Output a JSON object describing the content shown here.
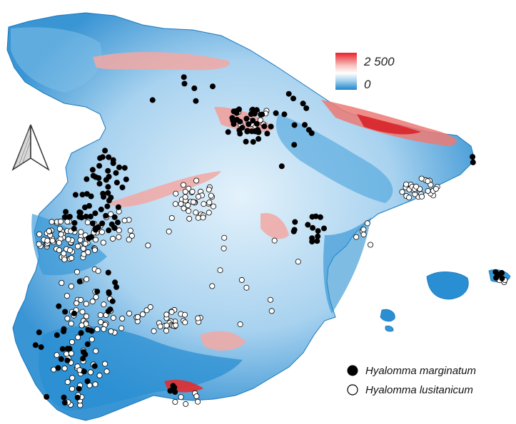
{
  "elevation_legend": {
    "max_label": "2 500",
    "min_label": "0",
    "colors": [
      "#e8222b",
      "#f7c4c1",
      "#ffffff",
      "#a9d3ee",
      "#1f86cc"
    ]
  },
  "north_arrow": {
    "icon": "north-arrow-icon"
  },
  "species_legend": {
    "items": [
      {
        "label": "Hyalomma marginatum",
        "marker": "filled",
        "color": "#000000"
      },
      {
        "label": "Hyalomma lusitanicum",
        "marker": "open",
        "color": "#ffffff"
      }
    ]
  },
  "map_colors": {
    "lowland": "#1f86cc",
    "plateau": "#cde8f7",
    "mountain": "#f2a8a3",
    "peak": "#e32c2c"
  }
}
